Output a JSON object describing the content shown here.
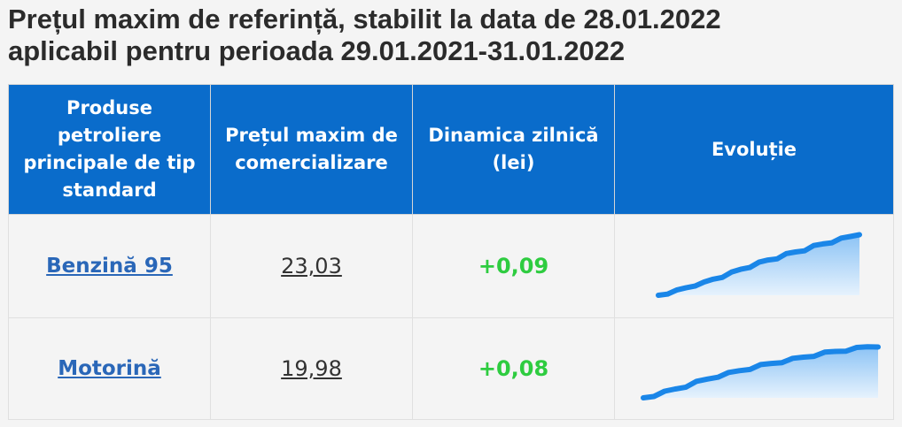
{
  "title": {
    "line1": "Prețul maxim de referință, stabilit la data de 28.01.2022",
    "line2": "aplicabil pentru perioada 29.01.2021-31.01.2022"
  },
  "table": {
    "headers": [
      "Produse petroliere principale de tip standard",
      "Prețul maxim de comercializare",
      "Dinamica zilnică (lei)",
      "Evoluție"
    ],
    "rows": [
      {
        "product": "Benzină 95",
        "price": "23,03",
        "delta": "+0,09",
        "trend": [
          0.0,
          0.04,
          0.07,
          0.12,
          0.17,
          0.2,
          0.26,
          0.31,
          0.36,
          0.42,
          0.47,
          0.52,
          0.57,
          0.61,
          0.66,
          0.7,
          0.74,
          0.79,
          0.83,
          0.87,
          0.91,
          0.95,
          1.0
        ]
      },
      {
        "product": "Motorină",
        "price": "19,98",
        "delta": "+0,08",
        "trend": [
          0.0,
          0.05,
          0.11,
          0.17,
          0.23,
          0.3,
          0.36,
          0.42,
          0.47,
          0.52,
          0.57,
          0.62,
          0.66,
          0.7,
          0.74,
          0.78,
          0.82,
          0.86,
          0.89,
          0.92,
          0.95,
          0.98,
          1.0
        ]
      }
    ]
  },
  "colors": {
    "header_bg": "#0a6ccb",
    "product_link": "#2a67b8",
    "delta_positive": "#2ecc40",
    "spark_line": "#1a86e8",
    "spark_fill_top": "#8cc3f5",
    "spark_fill_bottom": "#e6f2fd"
  }
}
